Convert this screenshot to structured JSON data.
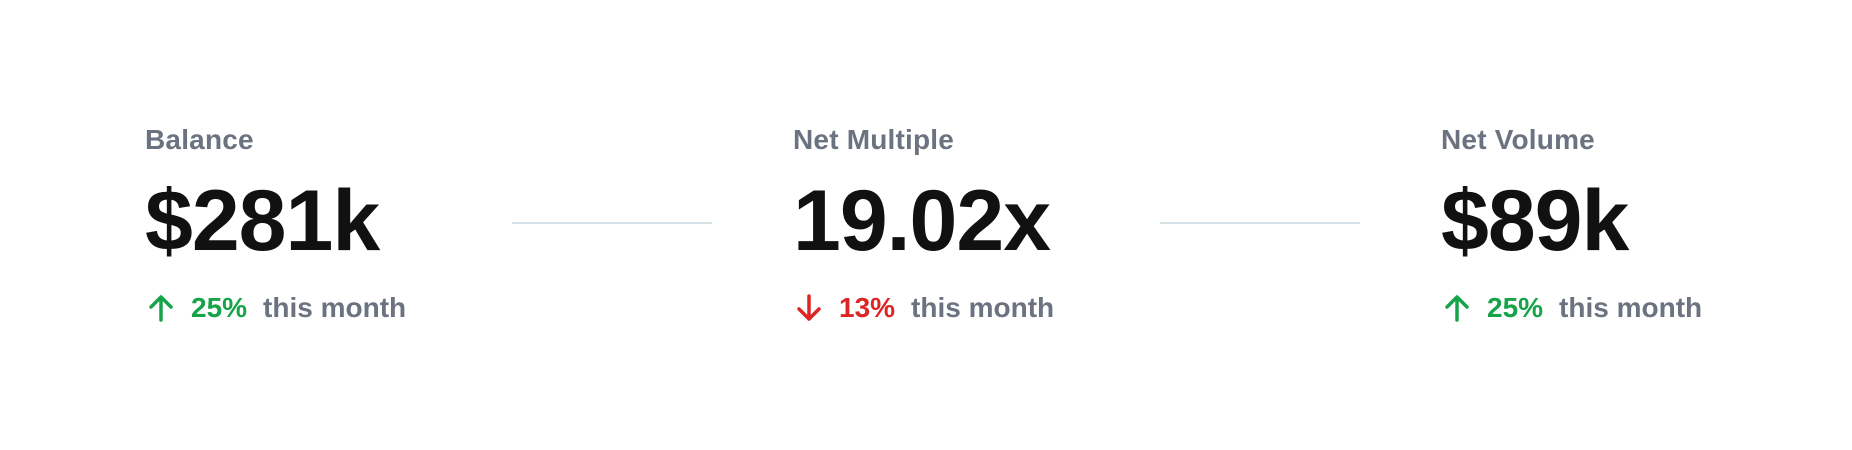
{
  "stats": [
    {
      "label": "Balance",
      "value": "$281k",
      "change": {
        "direction": "up",
        "percent": "25%",
        "period": "this month"
      }
    },
    {
      "label": "Net Multiple",
      "value": "19.02x",
      "change": {
        "direction": "down",
        "percent": "13%",
        "period": "this month"
      }
    },
    {
      "label": "Net Volume",
      "value": "$89k",
      "change": {
        "direction": "up",
        "percent": "25%",
        "period": "this month"
      }
    }
  ],
  "colors": {
    "up": "#16a34a",
    "down": "#dc2626",
    "label": "#6b7280",
    "value": "#111111",
    "divider": "#d7e2e8"
  },
  "icons": {
    "up": "arrow-up-icon",
    "down": "arrow-down-icon"
  }
}
